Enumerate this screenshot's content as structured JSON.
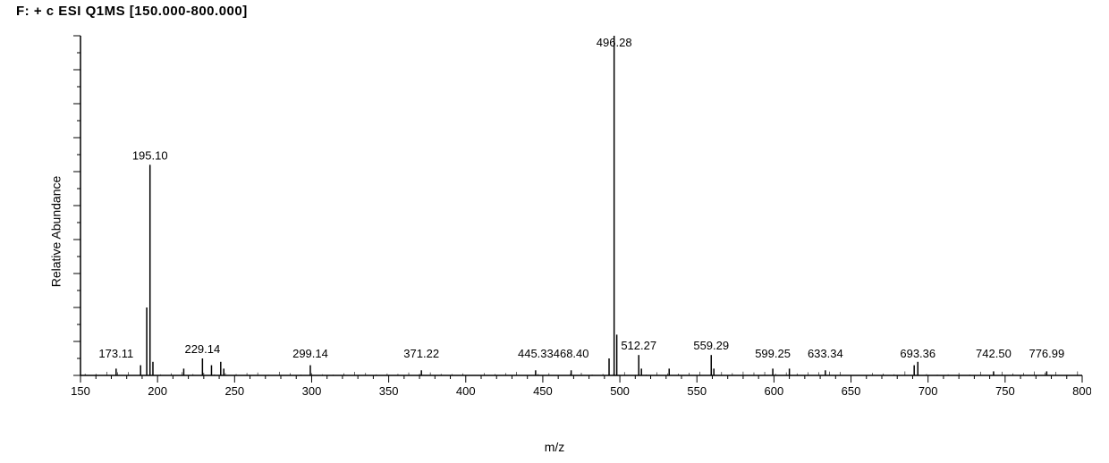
{
  "header": "F: + c ESI Q1MS [150.000-800.000]",
  "spectrum": {
    "type": "mass-spectrum",
    "xlabel": "m/z",
    "ylabel": "Relative Abundance",
    "xlim": [
      150,
      800
    ],
    "ylim": [
      0,
      100
    ],
    "xtick_step": 50,
    "ytick_step": 10,
    "background_color": "#ffffff",
    "axis_color": "#000000",
    "bar_color": "#000000",
    "label_fontsize": 13,
    "axis_fontsize": 14,
    "header_fontsize": 15,
    "peaks": [
      {
        "mz": 173.11,
        "intensity": 2,
        "label": "173.11",
        "show_label": true
      },
      {
        "mz": 189.0,
        "intensity": 3,
        "show_label": false
      },
      {
        "mz": 193.0,
        "intensity": 20,
        "show_label": false
      },
      {
        "mz": 195.1,
        "intensity": 62,
        "label": "195.10",
        "show_label": true
      },
      {
        "mz": 197.0,
        "intensity": 4,
        "show_label": false
      },
      {
        "mz": 217.0,
        "intensity": 2,
        "show_label": false
      },
      {
        "mz": 229.14,
        "intensity": 5,
        "label": "229.14",
        "show_label": true
      },
      {
        "mz": 235.0,
        "intensity": 3,
        "show_label": false
      },
      {
        "mz": 241.0,
        "intensity": 4,
        "show_label": false
      },
      {
        "mz": 243.0,
        "intensity": 2,
        "show_label": false
      },
      {
        "mz": 299.14,
        "intensity": 3,
        "label": "299.14",
        "show_label": true
      },
      {
        "mz": 371.22,
        "intensity": 1.5,
        "label": "371.22",
        "show_label": true
      },
      {
        "mz": 445.33,
        "intensity": 1.5,
        "label": "445.33",
        "show_label": true
      },
      {
        "mz": 468.4,
        "intensity": 1.5,
        "label": "468.40",
        "show_label": true
      },
      {
        "mz": 493.0,
        "intensity": 5,
        "show_label": false
      },
      {
        "mz": 496.28,
        "intensity": 100,
        "label": "496.28",
        "show_label": true
      },
      {
        "mz": 498.0,
        "intensity": 12,
        "show_label": false
      },
      {
        "mz": 512.27,
        "intensity": 6,
        "label": "512.27",
        "show_label": true
      },
      {
        "mz": 514.0,
        "intensity": 2,
        "show_label": false
      },
      {
        "mz": 532.0,
        "intensity": 2,
        "show_label": false
      },
      {
        "mz": 559.29,
        "intensity": 6,
        "label": "559.29",
        "show_label": true
      },
      {
        "mz": 561.0,
        "intensity": 2,
        "show_label": false
      },
      {
        "mz": 599.25,
        "intensity": 2,
        "label": "599.25",
        "show_label": true
      },
      {
        "mz": 610.0,
        "intensity": 2,
        "show_label": false
      },
      {
        "mz": 633.34,
        "intensity": 1.5,
        "label": "633.34",
        "show_label": true
      },
      {
        "mz": 691.0,
        "intensity": 3,
        "show_label": false
      },
      {
        "mz": 693.36,
        "intensity": 4,
        "label": "693.36",
        "show_label": true
      },
      {
        "mz": 742.5,
        "intensity": 1.2,
        "label": "742.50",
        "show_label": true
      },
      {
        "mz": 776.99,
        "intensity": 1.2,
        "label": "776.99",
        "show_label": true
      }
    ]
  }
}
